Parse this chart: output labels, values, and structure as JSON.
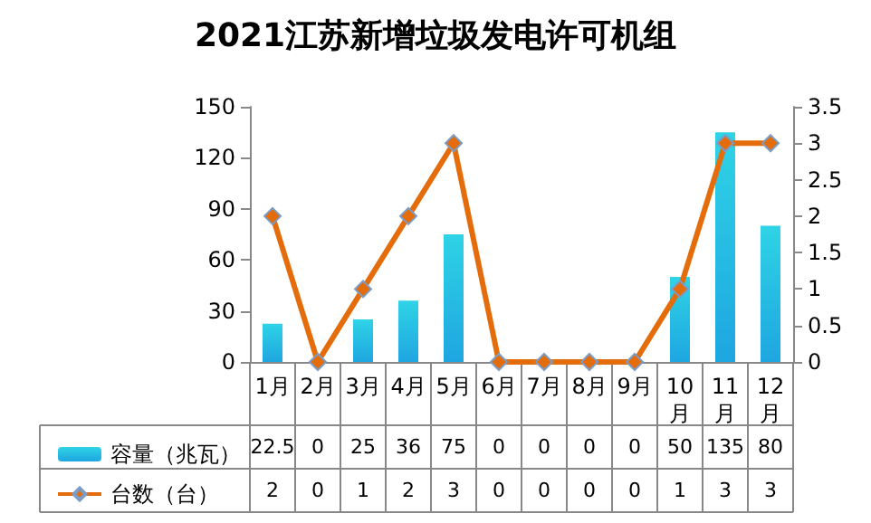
{
  "chart_data": {
    "type": "bar",
    "title": "2021江苏新增垃圾发电许可机组",
    "categories": [
      "1月",
      "2月",
      "3月",
      "4月",
      "5月",
      "6月",
      "7月",
      "8月",
      "9月",
      "10月",
      "11月",
      "12月"
    ],
    "series": [
      {
        "name": "容量（兆瓦）",
        "color": "#1ea6e0",
        "values": [
          22.5,
          0,
          25,
          36,
          75,
          0,
          0,
          0,
          0,
          50,
          135,
          80
        ]
      },
      {
        "name": "台数（台）",
        "type": "line",
        "axis": "y2",
        "color": "#e46c0a",
        "marker": "diamond",
        "values": [
          2,
          0,
          1,
          2,
          3,
          0,
          0,
          0,
          0,
          1,
          3,
          3
        ]
      }
    ],
    "ylim": [
      0,
      150
    ],
    "yticks": [
      0,
      30,
      60,
      90,
      120,
      150
    ],
    "y2lim": [
      0,
      3.5
    ],
    "y2ticks": [
      0,
      0.5,
      1,
      1.5,
      2,
      2.5,
      3,
      3.5
    ],
    "grid": false,
    "legend": "bottom left",
    "data_labels": true
  }
}
